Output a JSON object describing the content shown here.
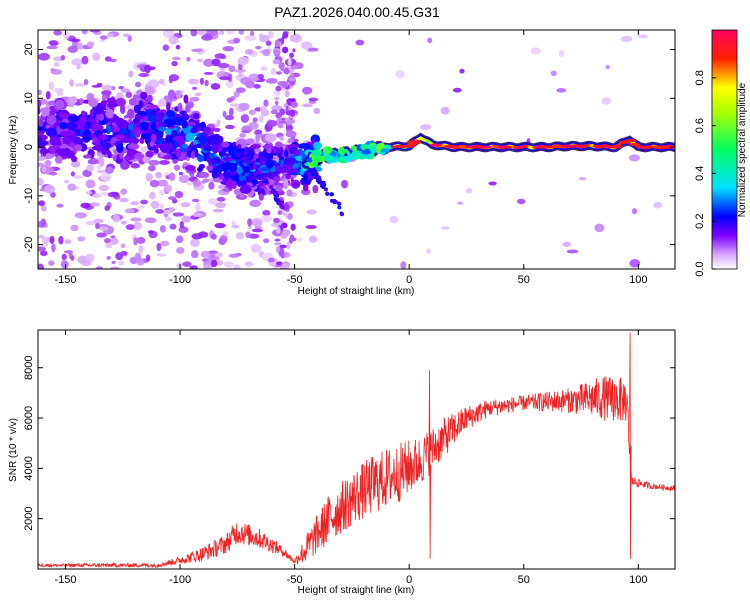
{
  "title": "PAZ1.2026.040.00.45.G31",
  "chart_data": [
    {
      "type": "heatmap",
      "title": "PAZ1.2026.040.00.45.G31",
      "xlabel": "Height of straight line (km)",
      "ylabel": "Frequency (Hz)",
      "xlim": [
        -162,
        116
      ],
      "ylim": [
        -25,
        24
      ],
      "xticks": [
        -150,
        -100,
        -50,
        0,
        50,
        100
      ],
      "yticks": [
        -20,
        -10,
        0,
        10,
        20
      ],
      "colorbar": {
        "label": "Normalized spectral amplitude",
        "ticks": [
          0.0,
          0.2,
          0.4,
          0.6,
          0.8
        ],
        "range": [
          0,
          1
        ],
        "colors": [
          "#ffffff",
          "#d8a8ff",
          "#8000ff",
          "#0000ff",
          "#00e0ff",
          "#00ff60",
          "#ffff00",
          "#ff0000",
          "#ff0060"
        ]
      },
      "ridge": [
        {
          "x": -155,
          "f": 3.5,
          "a": 0.22
        },
        {
          "x": -145,
          "f": 3.0,
          "a": 0.24
        },
        {
          "x": -135,
          "f": 4.0,
          "a": 0.24
        },
        {
          "x": -125,
          "f": 2.5,
          "a": 0.26
        },
        {
          "x": -115,
          "f": 5.0,
          "a": 0.27
        },
        {
          "x": -105,
          "f": 3.5,
          "a": 0.3
        },
        {
          "x": -95,
          "f": 2.0,
          "a": 0.32
        },
        {
          "x": -85,
          "f": -2.0,
          "a": 0.3
        },
        {
          "x": -75,
          "f": -4.0,
          "a": 0.34
        },
        {
          "x": -65,
          "f": -5.0,
          "a": 0.3
        },
        {
          "x": -55,
          "f": -3.0,
          "a": 0.25
        },
        {
          "x": -45,
          "f": -3.0,
          "a": 0.4
        },
        {
          "x": -38,
          "f": -2.0,
          "a": 0.45
        },
        {
          "x": -30,
          "f": -1.5,
          "a": 0.45
        },
        {
          "x": -20,
          "f": -0.8,
          "a": 0.55
        },
        {
          "x": -10,
          "f": 0.0,
          "a": 0.62
        },
        {
          "x": 0,
          "f": 0.2,
          "a": 0.7
        },
        {
          "x": 5,
          "f": 2.0,
          "a": 0.7
        },
        {
          "x": 10,
          "f": 0.5,
          "a": 0.75
        },
        {
          "x": 20,
          "f": 0.0,
          "a": 0.82
        },
        {
          "x": 30,
          "f": 0.0,
          "a": 0.88
        },
        {
          "x": 40,
          "f": 0.0,
          "a": 0.9
        },
        {
          "x": 50,
          "f": 0.0,
          "a": 0.9
        },
        {
          "x": 60,
          "f": 0.0,
          "a": 0.88
        },
        {
          "x": 70,
          "f": 0.2,
          "a": 0.88
        },
        {
          "x": 80,
          "f": 0.2,
          "a": 0.9
        },
        {
          "x": 90,
          "f": 0.0,
          "a": 0.9
        },
        {
          "x": 96,
          "f": 1.5,
          "a": 0.85
        },
        {
          "x": 100,
          "f": 0.0,
          "a": 0.92
        },
        {
          "x": 110,
          "f": 0.0,
          "a": 0.95
        }
      ]
    },
    {
      "type": "line",
      "xlabel": "Height of straight line (km)",
      "ylabel": "SNR (10 * v/v)",
      "xlim": [
        -162,
        116
      ],
      "ylim": [
        0,
        9500
      ],
      "xticks": [
        -150,
        -100,
        -50,
        0,
        50,
        100
      ],
      "yticks": [
        2000,
        4000,
        6000,
        8000
      ],
      "color": "#ee2222",
      "envelope": [
        {
          "x": -162,
          "base": 150,
          "amp": 60
        },
        {
          "x": -130,
          "base": 150,
          "amp": 80
        },
        {
          "x": -110,
          "base": 150,
          "amp": 80
        },
        {
          "x": -100,
          "base": 350,
          "amp": 150
        },
        {
          "x": -90,
          "base": 600,
          "amp": 300
        },
        {
          "x": -80,
          "base": 1000,
          "amp": 400
        },
        {
          "x": -75,
          "base": 1500,
          "amp": 500
        },
        {
          "x": -65,
          "base": 1200,
          "amp": 400
        },
        {
          "x": -55,
          "base": 700,
          "amp": 200
        },
        {
          "x": -50,
          "base": 300,
          "amp": 100
        },
        {
          "x": -45,
          "base": 800,
          "amp": 600
        },
        {
          "x": -35,
          "base": 2000,
          "amp": 1000
        },
        {
          "x": -25,
          "base": 2800,
          "amp": 1100
        },
        {
          "x": -15,
          "base": 3400,
          "amp": 1200
        },
        {
          "x": -5,
          "base": 3800,
          "amp": 1200
        },
        {
          "x": 5,
          "base": 4300,
          "amp": 1000
        },
        {
          "x": 15,
          "base": 5200,
          "amp": 800
        },
        {
          "x": 25,
          "base": 6000,
          "amp": 500
        },
        {
          "x": 35,
          "base": 6400,
          "amp": 350
        },
        {
          "x": 50,
          "base": 6600,
          "amp": 300
        },
        {
          "x": 70,
          "base": 6700,
          "amp": 500
        },
        {
          "x": 85,
          "base": 6800,
          "amp": 900
        },
        {
          "x": 95,
          "base": 6700,
          "amp": 900
        },
        {
          "x": 97,
          "base": 3500,
          "amp": 200
        },
        {
          "x": 105,
          "base": 3300,
          "amp": 120
        },
        {
          "x": 116,
          "base": 3200,
          "amp": 100
        }
      ],
      "spikes": [
        {
          "x": 9,
          "peak": 7900,
          "dip": 400
        },
        {
          "x": 96.5,
          "peak": 9400,
          "dip": 400
        }
      ]
    }
  ]
}
